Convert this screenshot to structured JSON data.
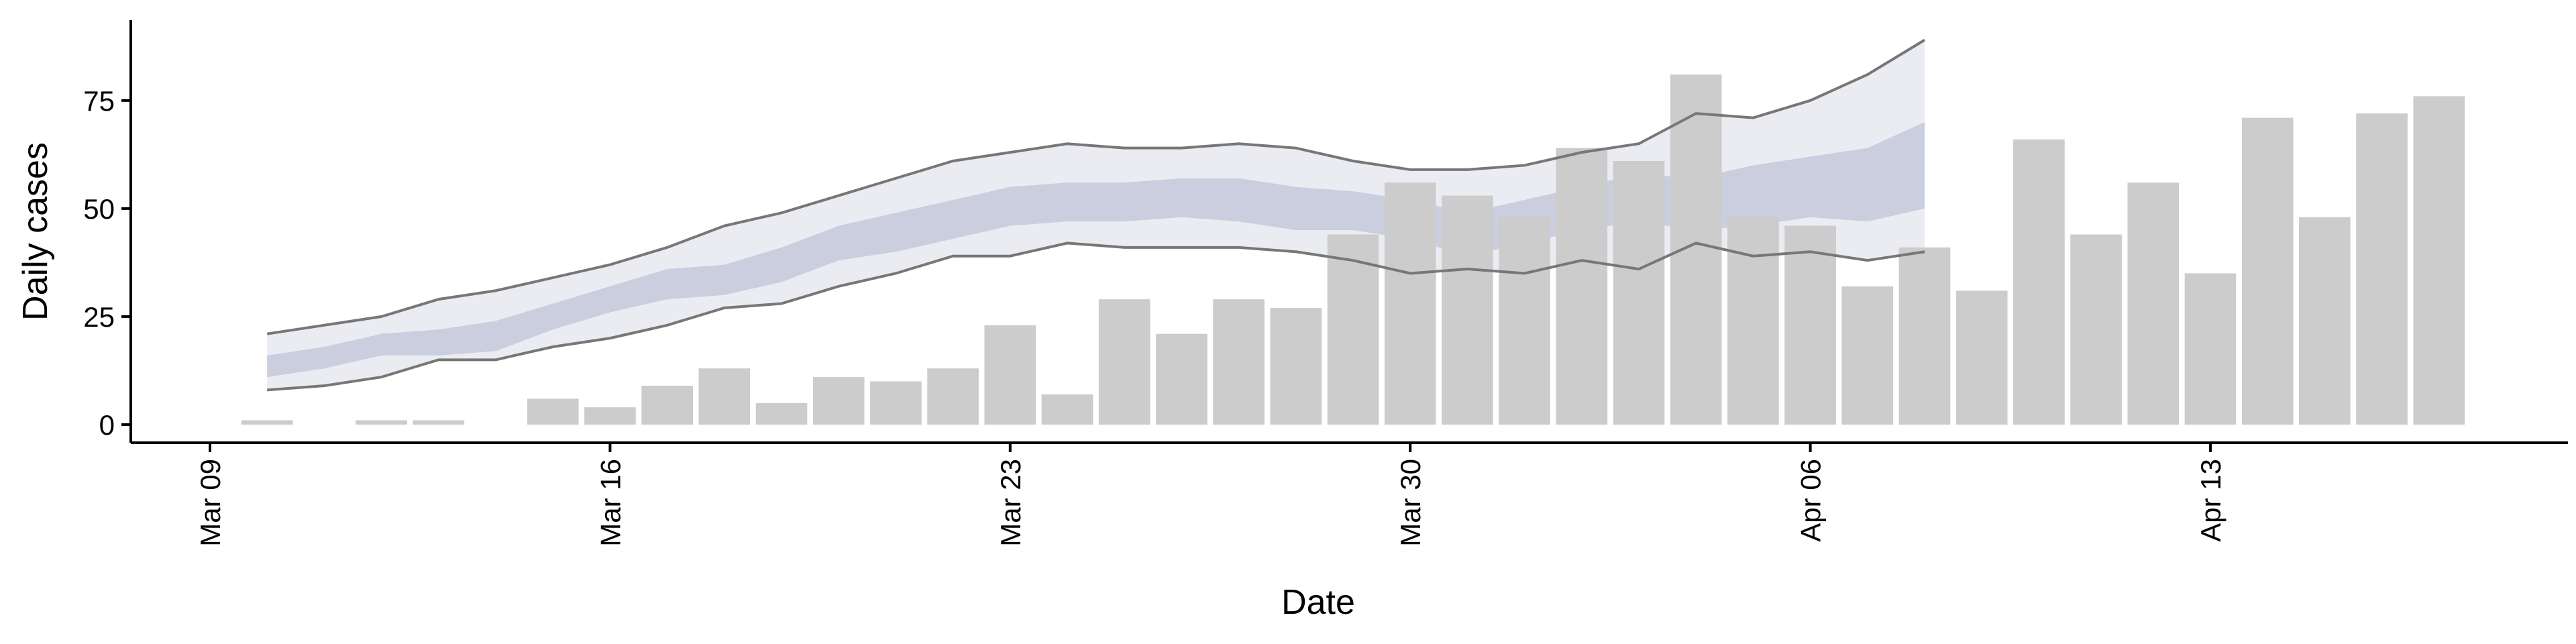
{
  "chart_data": {
    "type": "bar",
    "x_label": "Date",
    "y_label": "Daily cases",
    "categories": [
      "Mar 09",
      "Mar 10",
      "Mar 11",
      "Mar 12",
      "Mar 13",
      "Mar 14",
      "Mar 15",
      "Mar 16",
      "Mar 17",
      "Mar 18",
      "Mar 19",
      "Mar 20",
      "Mar 21",
      "Mar 22",
      "Mar 23",
      "Mar 24",
      "Mar 25",
      "Mar 26",
      "Mar 27",
      "Mar 28",
      "Mar 29",
      "Mar 30",
      "Mar 31",
      "Apr 01",
      "Apr 02",
      "Apr 03",
      "Apr 04",
      "Apr 05",
      "Apr 06",
      "Apr 07",
      "Apr 08",
      "Apr 09",
      "Apr 10",
      "Apr 11",
      "Apr 12",
      "Apr 13",
      "Apr 14",
      "Apr 15",
      "Apr 16",
      "Apr 17"
    ],
    "values": [
      null,
      1,
      0,
      1,
      1,
      0,
      6,
      4,
      9,
      13,
      5,
      11,
      10,
      13,
      23,
      7,
      29,
      21,
      29,
      27,
      44,
      56,
      53,
      48,
      64,
      61,
      81,
      48,
      46,
      32,
      41,
      31,
      66,
      44,
      56,
      35,
      71,
      48,
      72,
      76
    ],
    "color": "#cccccc",
    "ribbons": [
      {
        "color": "#e9eaf1",
        "line_color": "#777777",
        "upper": [
          null,
          21,
          23,
          25,
          29,
          31,
          34,
          37,
          41,
          46,
          49,
          53,
          57,
          61,
          63,
          65,
          64,
          64,
          65,
          64,
          61,
          59,
          59,
          60,
          63,
          65,
          72,
          71,
          75,
          81,
          89,
          null,
          null,
          null,
          null,
          null,
          null,
          null,
          null,
          null
        ],
        "lower": [
          null,
          8,
          9,
          11,
          15,
          15,
          18,
          20,
          23,
          27,
          28,
          32,
          35,
          39,
          39,
          42,
          41,
          41,
          41,
          40,
          38,
          35,
          36,
          35,
          38,
          36,
          42,
          39,
          40,
          38,
          40,
          null,
          null,
          null,
          null,
          null,
          null,
          null,
          null,
          null
        ]
      },
      {
        "color": "#c6cbdc",
        "line_color": null,
        "upper": [
          null,
          16,
          18,
          21,
          22,
          24,
          28,
          32,
          36,
          37,
          41,
          46,
          49,
          52,
          55,
          56,
          56,
          57,
          57,
          55,
          54,
          52,
          49,
          52,
          55,
          58,
          57,
          60,
          62,
          64,
          70,
          null,
          null,
          null,
          null,
          null,
          null,
          null,
          null,
          null
        ],
        "lower": [
          null,
          11,
          13,
          16,
          16,
          17,
          22,
          26,
          29,
          30,
          33,
          38,
          40,
          43,
          46,
          47,
          47,
          48,
          47,
          45,
          45,
          43,
          39,
          42,
          45,
          47,
          45,
          46,
          48,
          47,
          50,
          null,
          null,
          null,
          null,
          null,
          null,
          null,
          null,
          null
        ]
      }
    ],
    "ylim": [
      -4.2,
      93.6
    ],
    "yticks": [
      0,
      25,
      50,
      75
    ],
    "xticks": [
      "Mar 09",
      "Mar 16",
      "Mar 23",
      "Mar 30",
      "Apr 06",
      "Apr 13"
    ],
    "grid": false
  }
}
